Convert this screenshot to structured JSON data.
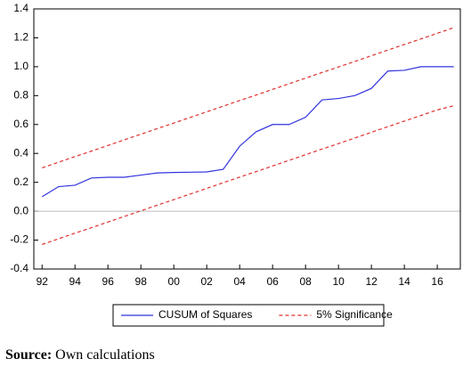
{
  "chart_data": {
    "type": "line",
    "x": [
      1992,
      1993,
      1994,
      1995,
      1996,
      1997,
      1998,
      1999,
      2000,
      2001,
      2002,
      2003,
      2004,
      2005,
      2006,
      2007,
      2008,
      2009,
      2010,
      2011,
      2012,
      2013,
      2014,
      2015,
      2016,
      2017
    ],
    "series": [
      {
        "name": "CUSUM of Squares",
        "color": "#3333dd",
        "style": "solid",
        "values": [
          0.1,
          0.17,
          0.18,
          0.23,
          0.235,
          0.235,
          0.25,
          0.265,
          0.268,
          0.27,
          0.272,
          0.29,
          0.45,
          0.55,
          0.6,
          0.6,
          0.65,
          0.77,
          0.78,
          0.8,
          0.85,
          0.97,
          0.975,
          1.0,
          1.0,
          1.0
        ]
      },
      {
        "name": "5% Significance",
        "color": "#e03030",
        "style": "dashed",
        "values": [
          0.3,
          0.339,
          0.378,
          0.416,
          0.455,
          0.494,
          0.533,
          0.572,
          0.61,
          0.649,
          0.688,
          0.727,
          0.766,
          0.804,
          0.843,
          0.882,
          0.921,
          0.96,
          0.998,
          1.037,
          1.076,
          1.115,
          1.154,
          1.192,
          1.231,
          1.27
        ]
      },
      {
        "name": "5% Significance",
        "color": "#e03030",
        "style": "dashed",
        "legend": false,
        "values": [
          -0.23,
          -0.191,
          -0.152,
          -0.114,
          -0.075,
          -0.036,
          0.003,
          0.042,
          0.08,
          0.119,
          0.158,
          0.197,
          0.236,
          0.274,
          0.313,
          0.352,
          0.391,
          0.43,
          0.468,
          0.507,
          0.546,
          0.585,
          0.624,
          0.662,
          0.701,
          0.73
        ]
      }
    ],
    "xlim": [
      1991.5,
      2017.4
    ],
    "xticks": [
      {
        "value": 1992,
        "label": "92"
      },
      {
        "value": 1994,
        "label": "94"
      },
      {
        "value": 1996,
        "label": "96"
      },
      {
        "value": 1998,
        "label": "98"
      },
      {
        "value": 2000,
        "label": "00"
      },
      {
        "value": 2002,
        "label": "02"
      },
      {
        "value": 2004,
        "label": "04"
      },
      {
        "value": 2006,
        "label": "06"
      },
      {
        "value": 2008,
        "label": "08"
      },
      {
        "value": 2010,
        "label": "10"
      },
      {
        "value": 2012,
        "label": "12"
      },
      {
        "value": 2014,
        "label": "14"
      },
      {
        "value": 2016,
        "label": "16"
      }
    ],
    "ylim": [
      -0.4,
      1.4
    ],
    "yticks": [
      -0.4,
      -0.2,
      {
        "value": 0,
        "label": "0.0"
      },
      0.2,
      0.4,
      0.6,
      0.8,
      {
        "value": 1,
        "label": "1.0"
      },
      1.2,
      1.4
    ],
    "zero_line": true,
    "legend": "bottom"
  },
  "source": {
    "label": "Source:",
    "text": "Own calculations"
  }
}
